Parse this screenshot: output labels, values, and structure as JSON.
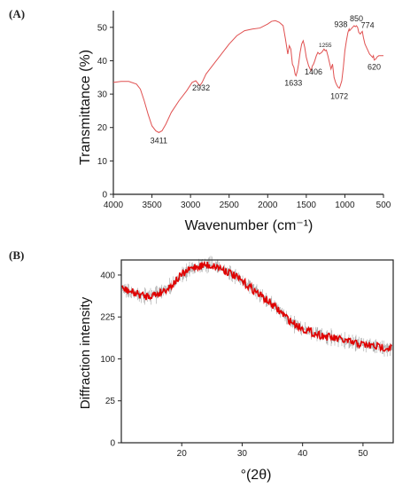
{
  "panels": {
    "a_label": "(A)",
    "b_label": "(B)"
  },
  "chart_data": [
    {
      "type": "line",
      "panel": "A",
      "title": "",
      "xlabel": "Wavenumber (cm⁻¹)",
      "ylabel": "Transmittance (%)",
      "xlim": [
        4000,
        500
      ],
      "ylim": [
        0,
        55
      ],
      "xticks": [
        4000,
        3500,
        3000,
        2500,
        2000,
        1500,
        1000,
        500
      ],
      "yticks": [
        0,
        10,
        20,
        30,
        40,
        50
      ],
      "color": "#e05050",
      "series": [
        {
          "x": [
            4000,
            3900,
            3800,
            3700,
            3650,
            3600,
            3550,
            3500,
            3450,
            3411,
            3370,
            3320,
            3250,
            3150,
            3050,
            2980,
            2932,
            2880,
            2850,
            2800,
            2700,
            2600,
            2500,
            2400,
            2300,
            2200,
            2100,
            2000,
            1950,
            1900,
            1850,
            1800,
            1770,
            1740,
            1720,
            1700,
            1680,
            1660,
            1645,
            1633,
            1615,
            1600,
            1580,
            1560,
            1540,
            1520,
            1500,
            1470,
            1440,
            1420,
            1406,
            1390,
            1370,
            1350,
            1330,
            1300,
            1270,
            1255,
            1240,
            1220,
            1200,
            1180,
            1160,
            1140,
            1120,
            1100,
            1085,
            1072,
            1060,
            1040,
            1020,
            1000,
            980,
            960,
            945,
            938,
            920,
            900,
            880,
            865,
            850,
            835,
            820,
            800,
            785,
            774,
            760,
            740,
            720,
            700,
            680,
            660,
            640,
            630,
            620,
            600,
            580,
            560,
            540,
            520,
            500
          ],
          "y": [
            33.5,
            33.8,
            33.8,
            33,
            31.5,
            28,
            24,
            20.5,
            19,
            18.5,
            19,
            21,
            24.5,
            28,
            31,
            33.5,
            34,
            32.5,
            33.5,
            36,
            39,
            42,
            45,
            47.5,
            49,
            49.5,
            49.8,
            51,
            51.8,
            52,
            51.5,
            50.5,
            46.5,
            42,
            44.5,
            43.5,
            39,
            38,
            36,
            35.5,
            37,
            39,
            42.5,
            45,
            46,
            44,
            41,
            38.5,
            37,
            38.5,
            39,
            40,
            41.5,
            42.5,
            42,
            42.5,
            43.5,
            43,
            43.2,
            41.5,
            39.5,
            37.5,
            39,
            35,
            33.5,
            32.5,
            32,
            31.8,
            32.5,
            34,
            38,
            43,
            46,
            48.5,
            49.5,
            49,
            49.5,
            50,
            50.5,
            50.2,
            50.5,
            50,
            48.5,
            48,
            48.5,
            48.8,
            47,
            45,
            44,
            43,
            42,
            41.5,
            41,
            41.5,
            40.2,
            40.5,
            41.2,
            41.5,
            41.5,
            41.5,
            41.5
          ]
        }
      ],
      "annotations": [
        {
          "text": "3411",
          "x": 3411,
          "y": 18.5
        },
        {
          "text": "2932",
          "x": 2932,
          "y": 34
        },
        {
          "text": "1633",
          "x": 1633,
          "y": 35.5
        },
        {
          "text": "1406",
          "x": 1406,
          "y": 39
        },
        {
          "text": "1255",
          "x": 1255,
          "y": 43
        },
        {
          "text": "1072",
          "x": 1072,
          "y": 31.8
        },
        {
          "text": "938",
          "x": 938,
          "y": 49
        },
        {
          "text": "850",
          "x": 850,
          "y": 50.5
        },
        {
          "text": "774",
          "x": 774,
          "y": 48.8
        },
        {
          "text": "620",
          "x": 620,
          "y": 40.5
        }
      ]
    },
    {
      "type": "line",
      "panel": "B",
      "title": "",
      "xlabel": "°(2θ)",
      "ylabel": "Diffraction intensity",
      "xlim": [
        10,
        55
      ],
      "ylim": [
        0,
        475
      ],
      "xticks": [
        20,
        30,
        40,
        50
      ],
      "yticks": [
        0,
        25,
        100,
        225,
        400
      ],
      "y_scale": "sqrt",
      "color": "#e00000",
      "noise_color": "#333333",
      "series": [
        {
          "x": [
            10,
            12,
            14,
            16,
            18,
            20,
            22,
            24,
            26,
            28,
            30,
            32,
            34,
            36,
            38,
            40,
            42,
            44,
            46,
            48,
            50,
            52,
            54.5
          ],
          "y": [
            340,
            320,
            305,
            315,
            345,
            400,
            440,
            450,
            440,
            410,
            370,
            330,
            290,
            250,
            210,
            185,
            170,
            160,
            152,
            143,
            137,
            132,
            128
          ]
        }
      ]
    }
  ]
}
